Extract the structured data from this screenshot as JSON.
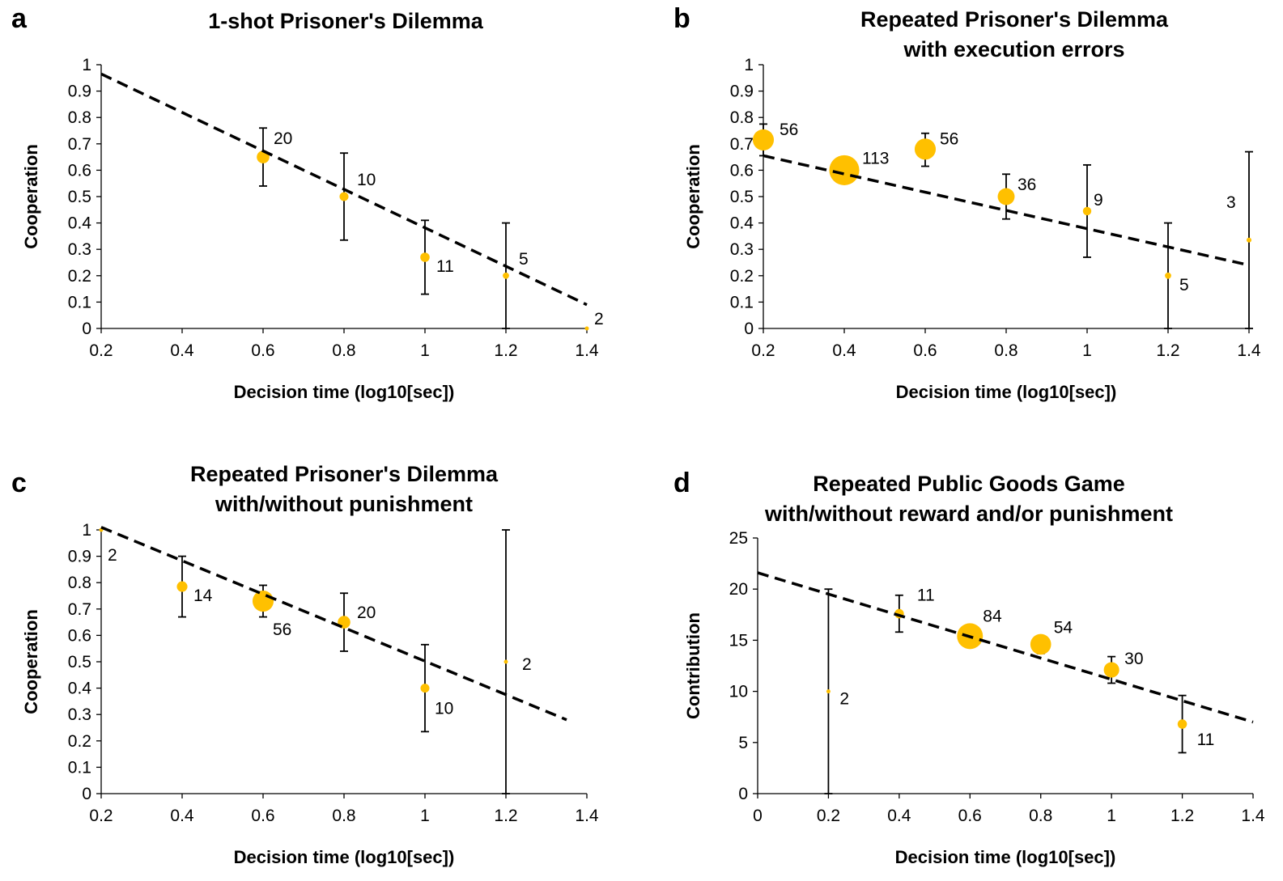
{
  "colors": {
    "marker": "#FFC000",
    "line": "#000000",
    "axis": "#000000"
  },
  "chart_data": [
    {
      "id": "a",
      "letter": "a",
      "type": "scatter",
      "title": [
        "1-shot Prisoner's Dilemma"
      ],
      "xlabel": "Decision time (log10[sec])",
      "ylabel": "Cooperation",
      "xlim": [
        0.2,
        1.4
      ],
      "ylim": [
        0,
        1
      ],
      "xticks": [
        0.2,
        0.4,
        0.6,
        0.8,
        1,
        1.2,
        1.4
      ],
      "xtick_labels": [
        "0.2",
        "0.4",
        "0.6",
        "0.8",
        "1",
        "1.2",
        "1.4"
      ],
      "yticks": [
        0,
        0.1,
        0.2,
        0.3,
        0.4,
        0.5,
        0.6,
        0.7,
        0.8,
        0.9,
        1
      ],
      "ytick_labels": [
        "0",
        "0.1",
        "0.2",
        "0.3",
        "0.4",
        "0.5",
        "0.6",
        "0.7",
        "0.8",
        "0.9",
        "1"
      ],
      "grid": false,
      "points": [
        {
          "x": 0.6,
          "y": 0.65,
          "n": 20,
          "label": "20",
          "err": [
            0.54,
            0.76
          ]
        },
        {
          "x": 0.8,
          "y": 0.5,
          "n": 10,
          "label": "10",
          "err": [
            0.335,
            0.665
          ]
        },
        {
          "x": 1.0,
          "y": 0.27,
          "n": 11,
          "label": "11",
          "err": [
            0.13,
            0.41
          ]
        },
        {
          "x": 1.2,
          "y": 0.2,
          "n": 5,
          "label": "5",
          "err": [
            0.0,
            0.4
          ]
        },
        {
          "x": 1.4,
          "y": 0.0,
          "n": 2,
          "label": "2",
          "err": [
            0.0,
            0.0
          ]
        }
      ],
      "trendline": {
        "x": [
          0.2,
          1.4
        ],
        "y": [
          0.965,
          0.09
        ]
      }
    },
    {
      "id": "b",
      "letter": "b",
      "type": "scatter",
      "title": [
        "Repeated Prisoner's Dilemma",
        "with execution errors"
      ],
      "xlabel": "Decision time (log10[sec])",
      "ylabel": "Cooperation",
      "xlim": [
        0.2,
        1.4
      ],
      "ylim": [
        0,
        1
      ],
      "xticks": [
        0.2,
        0.4,
        0.6,
        0.8,
        1,
        1.2,
        1.4
      ],
      "xtick_labels": [
        "0.2",
        "0.4",
        "0.6",
        "0.8",
        "1",
        "1.2",
        "1.4"
      ],
      "yticks": [
        0,
        0.1,
        0.2,
        0.3,
        0.4,
        0.5,
        0.6,
        0.7,
        0.8,
        0.9,
        1
      ],
      "ytick_labels": [
        "0",
        "0.1",
        "0.2",
        "0.3",
        "0.4",
        "0.5",
        "0.6",
        "0.7",
        "0.8",
        "0.9",
        "1"
      ],
      "grid": false,
      "points": [
        {
          "x": 0.2,
          "y": 0.715,
          "n": 56,
          "label": "56",
          "err": [
            0.655,
            0.775
          ]
        },
        {
          "x": 0.4,
          "y": 0.6,
          "n": 113,
          "label": "113",
          "err": [
            0.555,
            0.65
          ]
        },
        {
          "x": 0.6,
          "y": 0.68,
          "n": 56,
          "label": "56",
          "err": [
            0.615,
            0.74
          ]
        },
        {
          "x": 0.8,
          "y": 0.5,
          "n": 36,
          "label": "36",
          "err": [
            0.415,
            0.585
          ]
        },
        {
          "x": 1.0,
          "y": 0.445,
          "n": 9,
          "label": "9",
          "err": [
            0.27,
            0.62
          ]
        },
        {
          "x": 1.2,
          "y": 0.2,
          "n": 5,
          "label": "5",
          "err": [
            0.0,
            0.4
          ]
        },
        {
          "x": 1.4,
          "y": 0.335,
          "n": 3,
          "label": "3",
          "err": [
            0.0,
            0.67
          ]
        }
      ],
      "trendline": {
        "x": [
          0.2,
          1.4
        ],
        "y": [
          0.655,
          0.24
        ]
      }
    },
    {
      "id": "c",
      "letter": "c",
      "type": "scatter",
      "title": [
        "Repeated Prisoner's Dilemma",
        "with/without punishment"
      ],
      "xlabel": "Decision time (log10[sec])",
      "ylabel": "Cooperation",
      "xlim": [
        0.2,
        1.4
      ],
      "ylim": [
        0,
        1
      ],
      "xticks": [
        0.2,
        0.4,
        0.6,
        0.8,
        1,
        1.2,
        1.4
      ],
      "xtick_labels": [
        "0.2",
        "0.4",
        "0.6",
        "0.8",
        "1",
        "1.2",
        "1.4"
      ],
      "yticks": [
        0,
        0.1,
        0.2,
        0.3,
        0.4,
        0.5,
        0.6,
        0.7,
        0.8,
        0.9,
        1
      ],
      "ytick_labels": [
        "0",
        "0.1",
        "0.2",
        "0.3",
        "0.4",
        "0.5",
        "0.6",
        "0.7",
        "0.8",
        "0.9",
        "1"
      ],
      "grid": false,
      "points": [
        {
          "x": 0.2,
          "y": 1.0,
          "n": 2,
          "label": "2",
          "err": [
            1.0,
            1.0
          ]
        },
        {
          "x": 0.4,
          "y": 0.785,
          "n": 14,
          "label": "14",
          "err": [
            0.67,
            0.9
          ]
        },
        {
          "x": 0.6,
          "y": 0.73,
          "n": 56,
          "label": "56",
          "err": [
            0.67,
            0.79
          ]
        },
        {
          "x": 0.8,
          "y": 0.65,
          "n": 20,
          "label": "20",
          "err": [
            0.54,
            0.76
          ]
        },
        {
          "x": 1.0,
          "y": 0.4,
          "n": 10,
          "label": "10",
          "err": [
            0.235,
            0.565
          ]
        },
        {
          "x": 1.2,
          "y": 0.5,
          "n": 2,
          "label": "2",
          "err": [
            0.0,
            1.0
          ]
        }
      ],
      "trendline": {
        "x": [
          0.2,
          1.35
        ],
        "y": [
          1.01,
          0.28
        ]
      }
    },
    {
      "id": "d",
      "letter": "d",
      "type": "scatter",
      "title": [
        "Repeated Public Goods Game",
        "with/without reward and/or punishment"
      ],
      "xlabel": "Decision time (log10[sec])",
      "ylabel": "Contribution",
      "xlim": [
        0,
        1.4
      ],
      "ylim": [
        0,
        25
      ],
      "xticks": [
        0,
        0.2,
        0.4,
        0.6,
        0.8,
        1,
        1.2,
        1.4
      ],
      "xtick_labels": [
        "0",
        "0.2",
        "0.4",
        "0.6",
        "0.8",
        "1",
        "1.2",
        "1.4"
      ],
      "yticks": [
        0,
        5,
        10,
        15,
        20,
        25
      ],
      "ytick_labels": [
        "0",
        "5",
        "10",
        "15",
        "20",
        "25"
      ],
      "grid": false,
      "points": [
        {
          "x": 0.2,
          "y": 10.0,
          "n": 2,
          "label": "2",
          "err": [
            0.0,
            20.0
          ]
        },
        {
          "x": 0.4,
          "y": 17.6,
          "n": 11,
          "label": "11",
          "err": [
            15.8,
            19.4
          ]
        },
        {
          "x": 0.6,
          "y": 15.4,
          "n": 84,
          "label": "84",
          "err": [
            14.8,
            16.0
          ]
        },
        {
          "x": 0.8,
          "y": 14.6,
          "n": 54,
          "label": "54",
          "err": [
            13.7,
            15.4
          ]
        },
        {
          "x": 1.0,
          "y": 12.1,
          "n": 30,
          "label": "30",
          "err": [
            10.8,
            13.4
          ]
        },
        {
          "x": 1.2,
          "y": 6.8,
          "n": 11,
          "label": "11",
          "err": [
            4.0,
            9.6
          ]
        }
      ],
      "trendline": {
        "x": [
          0,
          1.4
        ],
        "y": [
          21.6,
          7.0
        ]
      }
    }
  ]
}
